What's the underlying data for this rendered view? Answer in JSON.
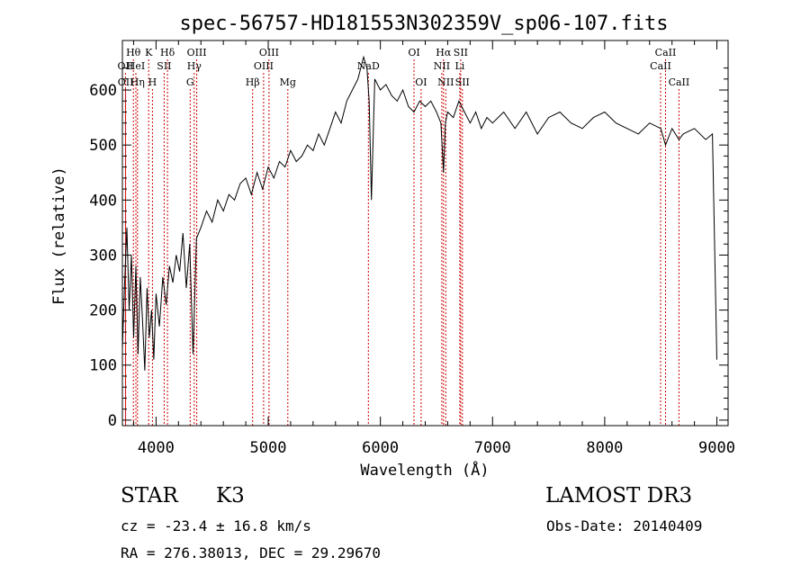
{
  "chart_data": {
    "type": "line",
    "title": "spec-56757-HD181553N302359V_sp06-107.fits",
    "xlabel": "Wavelength (Å)",
    "ylabel": "Flux (relative)",
    "xlim": [
      3700,
      9100
    ],
    "ylim": [
      -10,
      690
    ],
    "xticks": [
      4000,
      5000,
      6000,
      7000,
      8000,
      9000
    ],
    "yticks": [
      0,
      100,
      200,
      300,
      400,
      500,
      600
    ],
    "series": [
      {
        "name": "flux",
        "x": [
          3700,
          3720,
          3740,
          3760,
          3780,
          3800,
          3820,
          3840,
          3860,
          3880,
          3900,
          3920,
          3940,
          3960,
          3980,
          4000,
          4030,
          4060,
          4090,
          4120,
          4150,
          4180,
          4210,
          4240,
          4270,
          4300,
          4330,
          4360,
          4400,
          4450,
          4500,
          4550,
          4600,
          4650,
          4700,
          4750,
          4800,
          4850,
          4900,
          4950,
          5000,
          5050,
          5100,
          5150,
          5200,
          5250,
          5300,
          5350,
          5400,
          5450,
          5500,
          5550,
          5600,
          5650,
          5700,
          5750,
          5800,
          5850,
          5880,
          5900,
          5920,
          5950,
          6000,
          6050,
          6100,
          6150,
          6200,
          6250,
          6300,
          6350,
          6400,
          6450,
          6500,
          6540,
          6563,
          6580,
          6600,
          6650,
          6700,
          6750,
          6800,
          6850,
          6900,
          6950,
          7000,
          7100,
          7200,
          7300,
          7400,
          7500,
          7600,
          7700,
          7800,
          7900,
          8000,
          8100,
          8200,
          8300,
          8400,
          8500,
          8542,
          8600,
          8662,
          8700,
          8800,
          8900,
          8960,
          9000
        ],
        "y": [
          130,
          250,
          350,
          200,
          300,
          150,
          280,
          120,
          260,
          180,
          90,
          240,
          150,
          200,
          110,
          230,
          170,
          260,
          210,
          280,
          250,
          300,
          270,
          340,
          240,
          320,
          120,
          330,
          350,
          380,
          360,
          400,
          380,
          410,
          400,
          430,
          440,
          410,
          450,
          420,
          460,
          440,
          470,
          460,
          490,
          470,
          480,
          500,
          490,
          520,
          500,
          530,
          560,
          540,
          580,
          600,
          620,
          660,
          640,
          580,
          400,
          620,
          600,
          610,
          590,
          580,
          600,
          570,
          560,
          580,
          570,
          580,
          560,
          540,
          450,
          540,
          560,
          550,
          580,
          560,
          540,
          560,
          530,
          550,
          540,
          560,
          530,
          560,
          520,
          550,
          560,
          540,
          530,
          550,
          560,
          540,
          530,
          520,
          540,
          530,
          500,
          530,
          510,
          520,
          530,
          510,
          520,
          110
        ]
      }
    ],
    "line_ids": [
      {
        "label": "Hθ",
        "wl": 3798,
        "row": 1
      },
      {
        "label": "OII",
        "wl": 3727,
        "row": 2
      },
      {
        "label": "OII",
        "wl": 3729,
        "row": 3
      },
      {
        "label": "HeI",
        "wl": 3820,
        "row": 2
      },
      {
        "label": "Hη",
        "wl": 3835,
        "row": 3
      },
      {
        "label": "K",
        "wl": 3934,
        "row": 1
      },
      {
        "label": "SII",
        "wl": 4072,
        "row": 2
      },
      {
        "label": "H",
        "wl": 3968,
        "row": 3
      },
      {
        "label": "Hδ",
        "wl": 4102,
        "row": 1
      },
      {
        "label": "OIII",
        "wl": 4363,
        "row": 1
      },
      {
        "label": "Hγ",
        "wl": 4340,
        "row": 2
      },
      {
        "label": "G",
        "wl": 4304,
        "row": 3
      },
      {
        "label": "OIII",
        "wl": 5007,
        "row": 1
      },
      {
        "label": "OIII",
        "wl": 4959,
        "row": 2
      },
      {
        "label": "Hβ",
        "wl": 4861,
        "row": 3
      },
      {
        "label": "Mg",
        "wl": 5175,
        "row": 3
      },
      {
        "label": "NaD",
        "wl": 5893,
        "row": 2
      },
      {
        "label": "OI",
        "wl": 6300,
        "row": 1
      },
      {
        "label": "OI",
        "wl": 6363,
        "row": 3
      },
      {
        "label": "Hα",
        "wl": 6563,
        "row": 1
      },
      {
        "label": "NII",
        "wl": 6548,
        "row": 2
      },
      {
        "label": "NII",
        "wl": 6583,
        "row": 3
      },
      {
        "label": "SII",
        "wl": 6716,
        "row": 1
      },
      {
        "label": "Li",
        "wl": 6708,
        "row": 2
      },
      {
        "label": "SII",
        "wl": 6731,
        "row": 3
      },
      {
        "label": "CaII",
        "wl": 8542,
        "row": 1
      },
      {
        "label": "CaII",
        "wl": 8498,
        "row": 2
      },
      {
        "label": "CaII",
        "wl": 8662,
        "row": 3
      }
    ]
  },
  "info": {
    "object_class": "STAR",
    "subclass": "K3",
    "survey": "LAMOST DR3",
    "redshift": "cz = -23.4 ± 16.8 km/s",
    "obs_date": "Obs-Date: 20140409",
    "coords": "RA = 276.38013, DEC =  29.29670"
  },
  "colors": {
    "line_marker": "#cc0000",
    "spectrum": "#000000"
  }
}
